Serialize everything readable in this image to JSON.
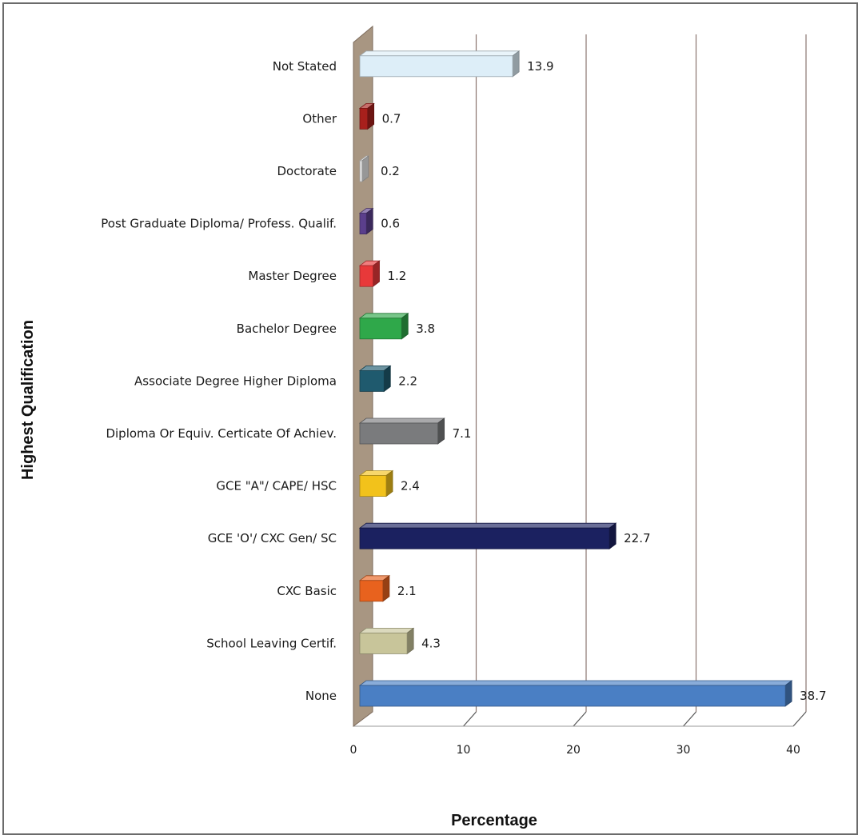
{
  "chart_data": {
    "type": "bar",
    "orientation": "horizontal",
    "categories": [
      "None",
      "School Leaving Certif.",
      "CXC Basic",
      "GCE 'O'/ CXC Gen/ SC",
      "GCE \"A\"/ CAPE/ HSC",
      "Diploma Or Equiv. Certicate Of Achiev.",
      "Associate Degree Higher Diploma",
      "Bachelor Degree",
      "Master Degree",
      "Post Graduate Diploma/ Profess. Qualif.",
      "Doctorate",
      "Other",
      "Not Stated"
    ],
    "values": [
      38.7,
      4.3,
      2.1,
      22.7,
      2.4,
      7.1,
      2.2,
      3.8,
      1.2,
      0.6,
      0.2,
      0.7,
      13.9
    ],
    "value_labels": [
      "38.7",
      "4.3",
      "2.1",
      "22.7",
      "2.4",
      "7.1",
      "2.2",
      "3.8",
      "1.2",
      "0.6",
      "0.2",
      "0.7",
      "13.9"
    ],
    "colors": [
      "#4a7fc4",
      "#c8c59a",
      "#e8621e",
      "#1b2160",
      "#f2c21b",
      "#7a7b7d",
      "#1f5a6e",
      "#2fa84a",
      "#e8393a",
      "#5b3f8c",
      "#e8e8e8",
      "#a8201c",
      "#ddeef8"
    ],
    "xlabel": "Percentage",
    "ylabel": "Highest Qualification",
    "xlim": [
      0,
      40
    ],
    "xticks": [
      0,
      10,
      20,
      30,
      40
    ],
    "xtick_labels": [
      "0",
      "10",
      "20",
      "30",
      "40"
    ],
    "grid": "vertical",
    "legend": "none",
    "style": "3d"
  }
}
